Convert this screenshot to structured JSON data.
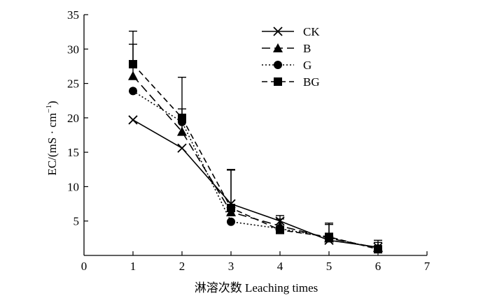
{
  "chart_data": {
    "type": "line",
    "xlabel": "淋溶次数 Leaching times",
    "ylabel_main": "EC/(mS · cm",
    "ylabel_sup": "−1",
    "ylabel_close": ")",
    "xlim": [
      0,
      7
    ],
    "ylim": [
      0,
      35
    ],
    "x_ticks": [
      "0",
      "1",
      "2",
      "3",
      "4",
      "5",
      "6",
      "7"
    ],
    "y_ticks": [
      "5",
      "10",
      "15",
      "20",
      "25",
      "30",
      "35"
    ],
    "grid": false,
    "legend_position": "top-right",
    "x": [
      1,
      2,
      3,
      4,
      5,
      6
    ],
    "series": [
      {
        "name": "CK",
        "marker": "x",
        "dash": "solid",
        "color": "#000000",
        "values": [
          19.7,
          15.6,
          7.5,
          5.0,
          2.2,
          1.2
        ],
        "error_up": [
          0,
          0,
          5.0,
          0,
          0,
          0
        ]
      },
      {
        "name": "B",
        "marker": "triangle",
        "dash": "long-dash",
        "color": "#000000",
        "values": [
          26.1,
          18.0,
          6.3,
          4.3,
          2.5,
          1.1
        ],
        "error_up": [
          4.6,
          3.3,
          0,
          1.5,
          2.0,
          1.1
        ]
      },
      {
        "name": "G",
        "marker": "circle",
        "dash": "dotted",
        "color": "#000000",
        "values": [
          23.9,
          19.4,
          4.9,
          3.9,
          2.6,
          1.0
        ],
        "error_up": [
          0,
          0,
          0,
          0,
          0,
          0
        ]
      },
      {
        "name": "BG",
        "marker": "square",
        "dash": "dashed",
        "color": "#000000",
        "values": [
          27.8,
          20.0,
          6.9,
          3.7,
          2.7,
          0.9
        ],
        "error_up": [
          4.8,
          5.9,
          5.5,
          1.6,
          2.0,
          1.0
        ]
      }
    ]
  }
}
